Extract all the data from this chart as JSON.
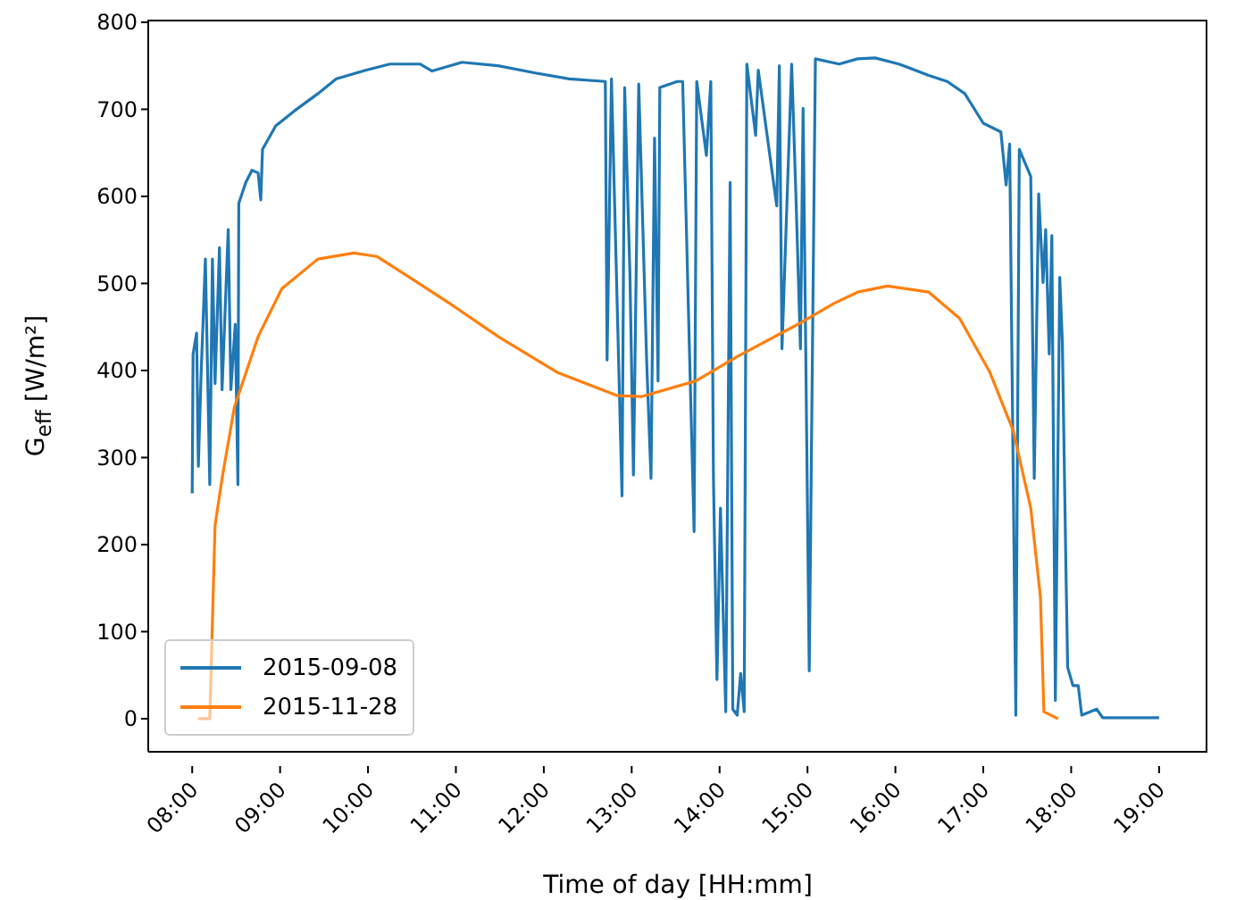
{
  "chart_data": {
    "type": "line",
    "xlabel": "Time of day [HH:mm]",
    "ylabel": "G$_{eff}$ [W/m²]",
    "xlim": [
      7.5,
      19.55
    ],
    "ylim": [
      -38,
      803
    ],
    "xticks": [
      {
        "value": 8,
        "label": "08:00"
      },
      {
        "value": 9,
        "label": "09:00"
      },
      {
        "value": 10,
        "label": "10:00"
      },
      {
        "value": 11,
        "label": "11:00"
      },
      {
        "value": 12,
        "label": "12:00"
      },
      {
        "value": 13,
        "label": "13:00"
      },
      {
        "value": 14,
        "label": "14:00"
      },
      {
        "value": 15,
        "label": "15:00"
      },
      {
        "value": 16,
        "label": "16:00"
      },
      {
        "value": 17,
        "label": "17:00"
      },
      {
        "value": 18,
        "label": "18:00"
      },
      {
        "value": 19,
        "label": "19:00"
      }
    ],
    "yticks": [
      0,
      100,
      200,
      300,
      400,
      500,
      600,
      700,
      800
    ],
    "grid": false,
    "legend": "bottom left",
    "marker": "none",
    "line_style": "solid",
    "series": [
      {
        "name": "2015-09-08",
        "color": "#1f77b4",
        "x": [
          8.0,
          8.01,
          8.05,
          8.07,
          8.1,
          8.15,
          8.2,
          8.23,
          8.26,
          8.31,
          8.34,
          8.41,
          8.44,
          8.49,
          8.52,
          8.53,
          8.61,
          8.68,
          8.75,
          8.78,
          8.8,
          8.95,
          9.16,
          9.43,
          9.64,
          9.98,
          10.25,
          10.59,
          10.73,
          11.07,
          11.48,
          11.89,
          12.29,
          12.7,
          12.72,
          12.77,
          12.89,
          12.92,
          12.98,
          13.02,
          13.08,
          13.17,
          13.22,
          13.26,
          13.3,
          13.32,
          13.52,
          13.58,
          13.66,
          13.71,
          13.74,
          13.85,
          13.9,
          13.93,
          13.97,
          14.01,
          14.07,
          14.12,
          14.15,
          14.2,
          14.24,
          14.28,
          14.31,
          14.41,
          14.44,
          14.65,
          14.68,
          14.71,
          14.82,
          14.87,
          14.92,
          14.95,
          15.02,
          15.09,
          15.36,
          15.57,
          15.77,
          16.04,
          16.38,
          16.59,
          16.79,
          17.0,
          17.2,
          17.26,
          17.3,
          17.37,
          17.41,
          17.54,
          17.58,
          17.63,
          17.68,
          17.71,
          17.75,
          17.78,
          17.82,
          17.87,
          17.9,
          17.94,
          17.96,
          18.02,
          18.08,
          18.12,
          18.29,
          18.36,
          19.0
        ],
        "values": [
          259,
          419,
          443,
          290,
          392,
          528,
          269,
          528,
          385,
          541,
          378,
          562,
          378,
          453,
          269,
          592,
          616,
          630,
          627,
          596,
          654,
          681,
          698,
          718,
          735,
          745,
          752,
          752,
          744,
          754,
          750,
          742,
          735,
          732,
          412,
          735,
          256,
          725,
          511,
          280,
          729,
          412,
          276,
          667,
          388,
          725,
          732,
          732,
          412,
          215,
          732,
          647,
          732,
          276,
          45,
          242,
          8,
          616,
          11,
          4,
          52,
          8,
          752,
          670,
          745,
          589,
          750,
          425,
          752,
          596,
          425,
          701,
          55,
          758,
          752,
          758,
          759,
          752,
          739,
          732,
          718,
          684,
          674,
          613,
          660,
          4,
          654,
          623,
          276,
          603,
          501,
          562,
          419,
          555,
          21,
          507,
          432,
          174,
          59,
          38,
          38,
          4,
          11,
          1,
          1
        ]
      },
      {
        "name": "2015-11-28",
        "color": "#ff7f0e",
        "x": [
          8.07,
          8.2,
          8.26,
          8.34,
          8.48,
          8.75,
          9.02,
          9.43,
          9.84,
          10.1,
          10.52,
          10.93,
          11.48,
          12.15,
          12.84,
          13.11,
          13.73,
          14.2,
          14.89,
          15.3,
          15.57,
          15.91,
          16.38,
          16.73,
          17.07,
          17.34,
          17.54,
          17.65,
          17.69,
          17.85
        ],
        "values": [
          0,
          0,
          222,
          276,
          358,
          439,
          494,
          528,
          535,
          531,
          504,
          477,
          439,
          398,
          371,
          370,
          388,
          416,
          453,
          477,
          490,
          497,
          490,
          460,
          399,
          331,
          242,
          140,
          8,
          0
        ]
      }
    ]
  }
}
